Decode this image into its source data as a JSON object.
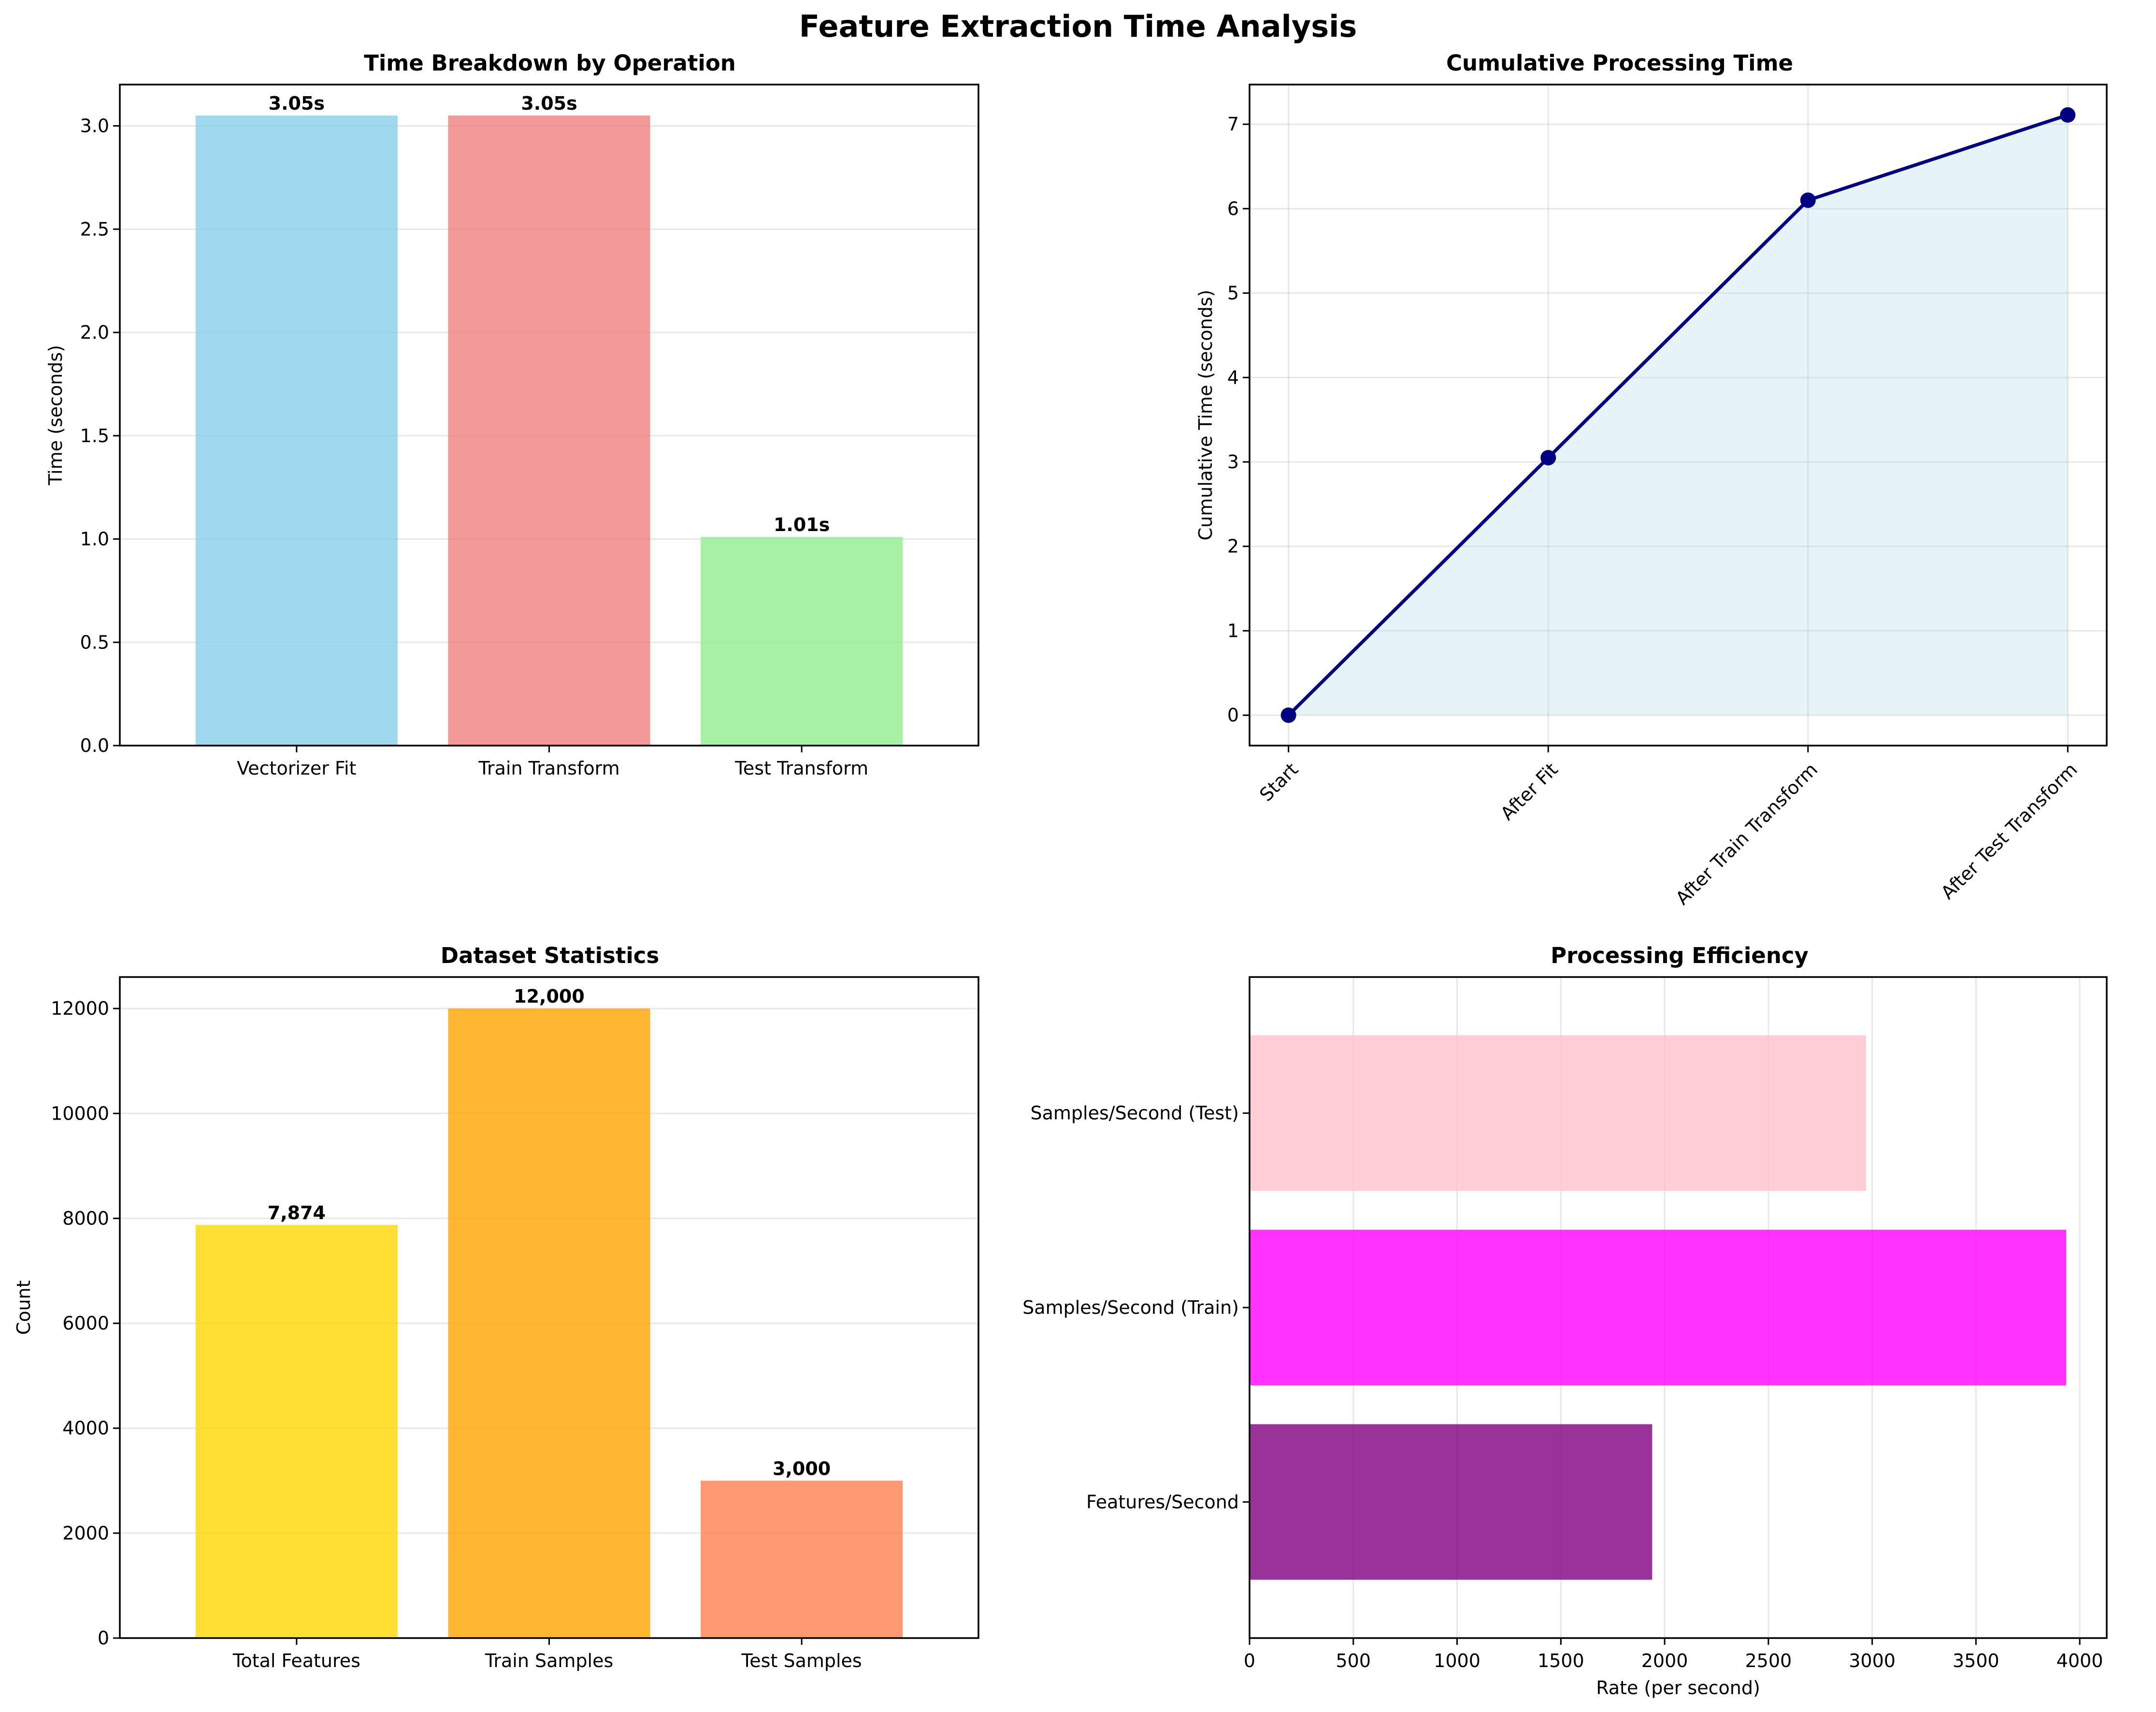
{
  "figure_title": "Feature Extraction Time Analysis",
  "chart_data": [
    {
      "type": "bar",
      "title": "Time Breakdown by Operation",
      "xlabel": "",
      "ylabel": "Time (seconds)",
      "categories": [
        "Vectorizer Fit",
        "Train Transform",
        "Test Transform"
      ],
      "values": [
        3.05,
        3.05,
        1.01
      ],
      "data_labels": [
        "3.05s",
        "3.05s",
        "1.01s"
      ],
      "colors": [
        "#87ceeb",
        "#f08080",
        "#90ee90"
      ],
      "ylim": [
        0,
        3.2
      ],
      "yticks": [
        0.0,
        0.5,
        1.0,
        1.5,
        2.0,
        2.5,
        3.0
      ],
      "ytick_labels": [
        "0.0",
        "0.5",
        "1.0",
        "1.5",
        "2.0",
        "2.5",
        "3.0"
      ],
      "grid": "y"
    },
    {
      "type": "line",
      "title": "Cumulative Processing Time",
      "xlabel": "",
      "ylabel": "Cumulative Time (seconds)",
      "categories": [
        "Start",
        "After Fit",
        "After Train Transform",
        "After Test Transform"
      ],
      "values": [
        0,
        3.05,
        6.1,
        7.11
      ],
      "color": "#000080",
      "fill_color": "#add8e6",
      "ylim": [
        -0.36,
        7.47
      ],
      "yticks": [
        0,
        1,
        2,
        3,
        4,
        5,
        6,
        7
      ],
      "ytick_labels": [
        "0",
        "1",
        "2",
        "3",
        "4",
        "5",
        "6",
        "7"
      ],
      "grid": "both"
    },
    {
      "type": "bar",
      "title": "Dataset Statistics",
      "xlabel": "",
      "ylabel": "Count",
      "categories": [
        "Total Features",
        "Train Samples",
        "Test Samples"
      ],
      "values": [
        7874,
        12000,
        3000
      ],
      "data_labels": [
        "7,874",
        "12,000",
        "3,000"
      ],
      "colors": [
        "#ffd700",
        "#ffa500",
        "#ff7f50"
      ],
      "ylim": [
        0,
        12600
      ],
      "yticks": [
        0,
        2000,
        4000,
        6000,
        8000,
        10000,
        12000
      ],
      "ytick_labels": [
        "0",
        "2000",
        "4000",
        "6000",
        "8000",
        "10000",
        "12000"
      ],
      "grid": "y"
    },
    {
      "type": "bar",
      "orientation": "horizontal",
      "title": "Processing Efficiency",
      "xlabel": "Rate (per second)",
      "ylabel": "",
      "categories": [
        "Features/Second",
        "Samples/Second (Train)",
        "Samples/Second (Test)"
      ],
      "values": [
        1940,
        3935,
        2970
      ],
      "colors": [
        "#800080",
        "#ff00ff",
        "#ffc0cb"
      ],
      "xlim": [
        0,
        4130
      ],
      "xticks": [
        0,
        500,
        1000,
        1500,
        2000,
        2500,
        3000,
        3500,
        4000
      ],
      "xtick_labels": [
        "0",
        "500",
        "1000",
        "1500",
        "2000",
        "2500",
        "3000",
        "3500",
        "4000"
      ],
      "grid": "x"
    }
  ]
}
